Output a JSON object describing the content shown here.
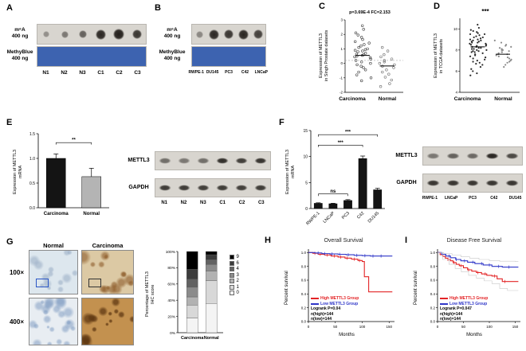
{
  "panel_a": {
    "label": "A",
    "m6a_label": "m⁶A\n400 ng",
    "methyblue_label": "MethyBlue\n400 ng",
    "lanes": [
      "N1",
      "N2",
      "N3",
      "C1",
      "C2",
      "C3"
    ],
    "dot_intensities": [
      0.38,
      0.5,
      0.62,
      0.92,
      0.97,
      0.85
    ],
    "dot_radii": [
      4,
      4.5,
      5,
      6.5,
      7,
      6
    ],
    "membrane_color": "#d8d5cf",
    "methyblue_color": "#3d63b0"
  },
  "panel_b": {
    "label": "B",
    "m6a_label": "m⁶A\n400 ng",
    "methyblue_label": "MethyBlue\n400 ng",
    "lanes": [
      "RWPE-1",
      "DU145",
      "PC3",
      "C42",
      "LNCaP"
    ],
    "dot_intensities": [
      0.42,
      0.92,
      0.85,
      0.93,
      0.8
    ],
    "dot_radii": [
      4.5,
      6.5,
      6,
      6.5,
      6
    ],
    "membrane_color": "#d8d5cf",
    "methyblue_color": "#3d63b0"
  },
  "panel_c": {
    "label": "C"
  },
  "panel_d": {
    "label": "D"
  },
  "panel_e": {
    "label": "E",
    "blot": {
      "row_labels": [
        "METTL3",
        "GAPDH"
      ],
      "lanes": [
        "N1",
        "N2",
        "N3",
        "C1",
        "C2",
        "C3"
      ],
      "bands": [
        [
          0.55,
          0.5,
          0.55,
          0.88,
          0.8,
          0.86
        ],
        [
          0.82,
          0.82,
          0.8,
          0.82,
          0.8,
          0.82
        ]
      ],
      "membrane_color": "#d8d5cf"
    }
  },
  "panel_f": {
    "label": "F",
    "blot": {
      "row_labels": [
        "METTL3",
        "GAPDH"
      ],
      "lanes": [
        "RWPE-1",
        "LNCaP",
        "PC3",
        "C42",
        "DU145"
      ],
      "bands": [
        [
          0.5,
          0.62,
          0.58,
          0.92,
          0.75
        ],
        [
          0.85,
          0.85,
          0.85,
          0.85,
          0.85
        ]
      ],
      "membrane_color": "#d8d5cf"
    }
  },
  "panel_g": {
    "label": "G",
    "col_headers": [
      "Normal",
      "Carcinoma"
    ],
    "row_headers": [
      "100×",
      "400×"
    ],
    "tiles": [
      {
        "name": "ihc-normal-100x",
        "base": "#dde7ee",
        "accent": "rgba(150,170,195,0.55)",
        "blobs": 14,
        "seed": 11,
        "zoom_box": true,
        "box_color": "#2a56c6"
      },
      {
        "name": "ihc-carcinoma-100x",
        "base": "#dcc9a4",
        "accent": "rgba(140,90,40,0.6)",
        "blobs": 16,
        "seed": 5,
        "zoom_box": true,
        "box_color": "#333333"
      },
      {
        "name": "ihc-normal-400x",
        "base": "#e8edf2",
        "accent": "rgba(120,150,190,0.5)",
        "blobs": 24,
        "seed": 9,
        "zoom_box": false,
        "box_color": ""
      },
      {
        "name": "ihc-carcinoma-400x",
        "base": "#c3914f",
        "accent": "rgba(95,56,18,0.75)",
        "blobs": 15,
        "seed": 7,
        "zoom_box": false,
        "box_color": ""
      }
    ]
  },
  "panel_h": {
    "label": "H"
  },
  "panel_i": {
    "label": "I"
  },
  "chart_data": [
    {
      "id": "panelC",
      "type": "scatter",
      "annotation": "p=3.69E-4  FC=2.153",
      "ylabel": "Expression of METTL3\nin Singh Prostate datasets",
      "categories": [
        "Carcinoma",
        "Normal"
      ],
      "ylim": [
        -2,
        3
      ],
      "yticks": [
        -2,
        -1,
        0,
        1,
        2,
        3
      ],
      "hline": 0.2,
      "series": [
        {
          "name": "Carcinoma",
          "marker": "open",
          "color": "#3a3a3a",
          "mean": 0.55,
          "values": [
            2.6,
            2.35,
            2.1,
            1.95,
            1.8,
            1.65,
            1.5,
            1.4,
            1.3,
            1.2,
            1.1,
            1.0,
            0.95,
            0.9,
            0.85,
            0.8,
            0.7,
            0.65,
            0.6,
            0.55,
            0.5,
            0.45,
            0.4,
            0.3,
            0.2,
            0.1,
            0.0,
            -0.1,
            -0.2,
            -0.3,
            -0.45,
            -0.6,
            -0.8,
            -1.0,
            -1.2
          ]
        },
        {
          "name": "Normal",
          "marker": "open",
          "color": "#6e6e6e",
          "mean": -0.18,
          "values": [
            1.1,
            0.85,
            0.6,
            0.45,
            0.3,
            0.2,
            0.1,
            0.0,
            -0.1,
            -0.2,
            -0.3,
            -0.45,
            -0.6,
            -0.75,
            -0.95,
            -1.15,
            -1.4,
            -1.6
          ]
        }
      ]
    },
    {
      "id": "panelD",
      "type": "scatter",
      "annotation": "***",
      "ylabel": "Expression of METTL3\nin TCGA datasets",
      "categories": [
        "Carcinoma",
        "Normal"
      ],
      "ylim": [
        4,
        11
      ],
      "yticks": [
        4,
        6,
        8,
        10
      ],
      "series": [
        {
          "name": "Carcinoma",
          "marker": "filled",
          "color": "#2b2b2b",
          "mean": 8.3,
          "values": [
            10.4,
            10.1,
            9.9,
            9.8,
            9.7,
            9.6,
            9.5,
            9.5,
            9.4,
            9.3,
            9.2,
            9.2,
            9.1,
            9.0,
            9.0,
            8.9,
            8.9,
            8.8,
            8.8,
            8.7,
            8.7,
            8.6,
            8.6,
            8.5,
            8.5,
            8.4,
            8.4,
            8.3,
            8.3,
            8.2,
            8.2,
            8.1,
            8.1,
            8.0,
            8.0,
            7.9,
            7.9,
            7.8,
            7.8,
            7.7,
            7.6,
            7.5,
            7.4,
            7.3,
            7.2,
            7.1,
            7.0,
            6.9,
            6.8,
            6.7,
            6.6,
            6.4,
            6.2,
            6.0,
            5.8,
            5.6
          ]
        },
        {
          "name": "Normal",
          "marker": "filled",
          "color": "#8a8a8a",
          "mean": 7.6,
          "values": [
            8.9,
            8.7,
            8.5,
            8.4,
            8.3,
            8.2,
            8.1,
            8.0,
            8.0,
            7.9,
            7.8,
            7.8,
            7.7,
            7.6,
            7.6,
            7.5,
            7.4,
            7.3,
            7.2,
            7.1,
            7.0,
            6.9,
            6.8,
            6.6,
            6.4
          ]
        }
      ]
    },
    {
      "id": "panelE",
      "type": "bar",
      "ylabel": "Expression of METTL3\nmRNA",
      "categories": [
        "Carcinoma",
        "Normal"
      ],
      "values": [
        1.0,
        0.63
      ],
      "errors": [
        0.09,
        0.17
      ],
      "colors": [
        "#141414",
        "#b4b4b4"
      ],
      "ylim": [
        0,
        1.5
      ],
      "yticks": [
        0,
        0.5,
        1,
        1.5
      ],
      "ytick_fmt": "1dp",
      "annotations": [
        {
          "from": 0,
          "to": 1,
          "label": "**",
          "height": 1.32
        }
      ]
    },
    {
      "id": "panelF",
      "type": "bar",
      "ylabel": "Expression of METTL3\nmRNA",
      "categories": [
        "RWPE-1",
        "LNCaP",
        "PC3",
        "C42",
        "DU145"
      ],
      "values": [
        1.0,
        0.92,
        1.55,
        9.6,
        3.6
      ],
      "errors": [
        0.1,
        0.1,
        0.16,
        0.5,
        0.3
      ],
      "colors": [
        "#141414",
        "#141414",
        "#141414",
        "#141414",
        "#141414"
      ],
      "ylim": [
        0,
        15
      ],
      "yticks": [
        0,
        5,
        10,
        15
      ],
      "rotate_xticks": true,
      "annotations": [
        {
          "from": 0,
          "to": 4,
          "label": "***",
          "height": 14.2
        },
        {
          "from": 0,
          "to": 3,
          "label": "***",
          "height": 12.2
        },
        {
          "from": 0,
          "to": 2,
          "label": "ns",
          "height": 2.8
        }
      ]
    },
    {
      "id": "panelG",
      "type": "stacked_bar",
      "ylabel": "Percentage of METTL3\nIHC score",
      "categories": [
        "Carcinoma",
        "Normal"
      ],
      "yticks_percent": [
        0,
        20,
        40,
        60,
        80,
        100
      ],
      "scores": [
        "9",
        "6",
        "4",
        "3",
        "2",
        "1",
        "0"
      ],
      "score_colors": [
        "#000000",
        "#3c3c3c",
        "#626262",
        "#8b8b8b",
        "#b2b2b2",
        "#d8d8d8",
        "#f4f4f4"
      ],
      "series": [
        {
          "name": "Carcinoma",
          "values": [
            22,
            12,
            10,
            12,
            10,
            16,
            18
          ]
        },
        {
          "name": "Normal",
          "values": [
            4,
            6,
            6,
            8,
            12,
            28,
            36
          ]
        }
      ]
    },
    {
      "id": "panelH",
      "type": "km",
      "title": "Overall Survival",
      "xlabel": "Months",
      "ylabel": "Percent survival",
      "xlim": [
        0,
        160
      ],
      "xticks": [
        0,
        50,
        100,
        150
      ],
      "ylim": [
        0,
        1.05
      ],
      "yticks": [
        0,
        0.2,
        0.4,
        0.6,
        0.8,
        1.0
      ],
      "series": [
        {
          "name": "High METTL3 Group",
          "color": "#e32426",
          "points": [
            [
              0,
              1.0
            ],
            [
              8,
              0.99
            ],
            [
              18,
              0.975
            ],
            [
              30,
              0.965
            ],
            [
              42,
              0.95
            ],
            [
              55,
              0.935
            ],
            [
              68,
              0.92
            ],
            [
              80,
              0.905
            ],
            [
              92,
              0.885
            ],
            [
              100,
              0.87
            ],
            [
              104,
              0.65
            ],
            [
              112,
              0.43
            ],
            [
              150,
              0.43
            ]
          ],
          "censors": [
            12,
            22,
            35,
            48,
            60,
            72,
            85,
            95
          ]
        },
        {
          "name": "Low METTL3 Group",
          "color": "#2f36c8",
          "points": [
            [
              0,
              1.0
            ],
            [
              12,
              0.995
            ],
            [
              25,
              0.985
            ],
            [
              40,
              0.98
            ],
            [
              55,
              0.975
            ],
            [
              70,
              0.968
            ],
            [
              85,
              0.96
            ],
            [
              100,
              0.955
            ],
            [
              115,
              0.95
            ],
            [
              150,
              0.95
            ]
          ],
          "censors": [
            18,
            30,
            44,
            58,
            74,
            90,
            105,
            120,
            135
          ]
        }
      ],
      "stats": [
        "Logrank P=0.04",
        "n(high)=144",
        "n(low)=144"
      ]
    },
    {
      "id": "panelI",
      "type": "km",
      "title": "Disease Free Survival",
      "xlabel": "Months",
      "ylabel": "Percent survival",
      "xlim": [
        0,
        160
      ],
      "xticks": [
        0,
        50,
        100,
        150
      ],
      "ylim": [
        0,
        1.05
      ],
      "yticks": [
        0,
        0.2,
        0.4,
        0.6,
        0.8,
        1.0
      ],
      "series": [
        {
          "name": "High METTL3 Group",
          "color": "#e32426",
          "points": [
            [
              0,
              1.0
            ],
            [
              5,
              0.97
            ],
            [
              10,
              0.945
            ],
            [
              15,
              0.92
            ],
            [
              20,
              0.9
            ],
            [
              25,
              0.88
            ],
            [
              30,
              0.855
            ],
            [
              36,
              0.83
            ],
            [
              42,
              0.81
            ],
            [
              50,
              0.78
            ],
            [
              58,
              0.75
            ],
            [
              66,
              0.73
            ],
            [
              75,
              0.71
            ],
            [
              85,
              0.69
            ],
            [
              95,
              0.67
            ],
            [
              105,
              0.66
            ],
            [
              115,
              0.62
            ],
            [
              125,
              0.58
            ],
            [
              150,
              0.58
            ]
          ],
          "censors": [
            20,
            32,
            45,
            60,
            78,
            92,
            110,
            130
          ]
        },
        {
          "name": "Low METTL3 Group",
          "color": "#2f36c8",
          "points": [
            [
              0,
              1.0
            ],
            [
              8,
              0.975
            ],
            [
              16,
              0.95
            ],
            [
              25,
              0.925
            ],
            [
              35,
              0.9
            ],
            [
              45,
              0.88
            ],
            [
              58,
              0.86
            ],
            [
              72,
              0.84
            ],
            [
              88,
              0.82
            ],
            [
              105,
              0.8
            ],
            [
              125,
              0.79
            ],
            [
              150,
              0.79
            ]
          ],
          "censors": [
            22,
            36,
            52,
            68,
            85,
            100,
            118,
            138
          ]
        },
        {
          "name": "CI",
          "ci": true,
          "color": "#c8c8c8",
          "points": [
            [
              0,
              1.0
            ],
            [
              10,
              0.9
            ],
            [
              22,
              0.83
            ],
            [
              34,
              0.77
            ],
            [
              46,
              0.72
            ],
            [
              60,
              0.67
            ],
            [
              75,
              0.63
            ],
            [
              90,
              0.59
            ],
            [
              105,
              0.55
            ],
            [
              120,
              0.48
            ],
            [
              135,
              0.45
            ],
            [
              150,
              0.45
            ]
          ]
        },
        {
          "name": "CI",
          "ci": true,
          "color": "#c8c8c8",
          "points": [
            [
              0,
              1.0
            ],
            [
              12,
              0.985
            ],
            [
              28,
              0.965
            ],
            [
              45,
              0.94
            ],
            [
              62,
              0.92
            ],
            [
              80,
              0.9
            ],
            [
              100,
              0.885
            ],
            [
              120,
              0.875
            ],
            [
              150,
              0.87
            ]
          ]
        }
      ],
      "stats": [
        "Logrank P=0.047",
        "n(high)=144",
        "n(low)=144"
      ]
    }
  ]
}
